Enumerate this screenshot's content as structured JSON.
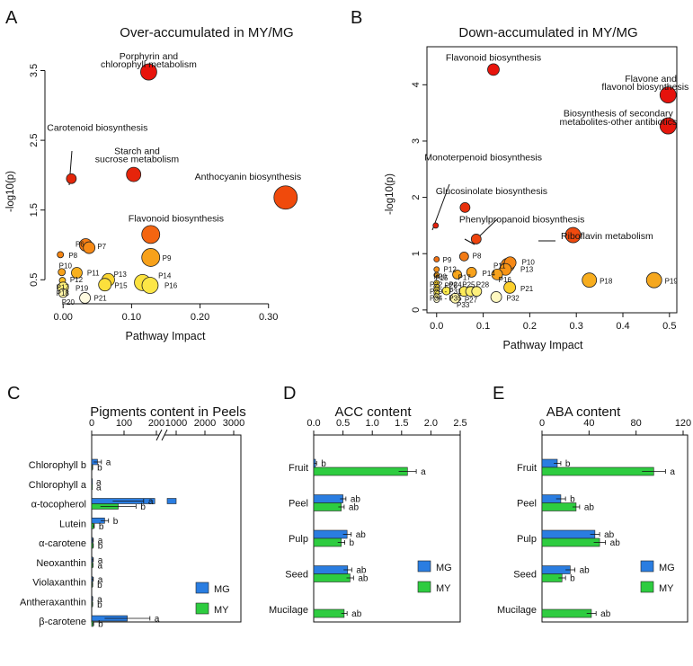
{
  "colors": {
    "MG": "#2a7de1",
    "MY": "#2ecc40",
    "frame": "#111111"
  },
  "panels": [
    {
      "letter": "A",
      "title": "Over-accumulated in MY/MG"
    },
    {
      "letter": "B",
      "title": "Down-accumulated in MY/MG"
    },
    {
      "letter": "C",
      "title": "Pigments content in Peels"
    },
    {
      "letter": "D",
      "title": "ACC content"
    },
    {
      "letter": "E",
      "title": "ABA content"
    }
  ],
  "chart_data": [
    {
      "id": "A",
      "type": "scatter",
      "title": "Over-accumulated in MY/MG",
      "xlabel": "Pathway Impact",
      "ylabel": "-log10(p)",
      "xlim": [
        -0.02,
        0.345
      ],
      "ylim": [
        0.22,
        3.7
      ],
      "xticks": [
        {
          "v": 0,
          "t": "0.00"
        },
        {
          "v": 0.1,
          "t": "0.10"
        },
        {
          "v": 0.2,
          "t": "0.20"
        },
        {
          "v": 0.3,
          "t": "0.30"
        }
      ],
      "yticks": [
        {
          "v": 0.5,
          "t": "0.5"
        },
        {
          "v": 1.5,
          "t": "1.5"
        },
        {
          "v": 2.5,
          "t": "2.5"
        },
        {
          "v": 3.5,
          "t": "3.5"
        }
      ],
      "points": [
        {
          "x": 0.125,
          "y": 3.48,
          "s": 9,
          "c": "#e8140c"
        },
        {
          "x": 0.012,
          "y": 1.95,
          "s": 5.5,
          "c": "#e4260a"
        },
        {
          "x": 0.103,
          "y": 2.01,
          "s": 8,
          "c": "#e6240b"
        },
        {
          "x": 0.325,
          "y": 1.68,
          "s": 13,
          "c": "#f04a0c"
        },
        {
          "x": 0.128,
          "y": 1.15,
          "s": 10,
          "c": "#f46510"
        },
        {
          "x": 0.033,
          "y": 1.0,
          "s": 7,
          "c": "#f67c14"
        },
        {
          "x": 0.038,
          "y": 0.96,
          "s": 6.5,
          "c": "#f78a16"
        },
        {
          "x": 0.128,
          "y": 0.82,
          "s": 10,
          "c": "#f7a11a"
        },
        {
          "x": -0.004,
          "y": 0.86,
          "s": 3.5,
          "c": "#f58512"
        },
        {
          "x": -0.002,
          "y": 0.61,
          "s": 4,
          "c": "#f6a11a"
        },
        {
          "x": 0.02,
          "y": 0.6,
          "s": 6,
          "c": "#f8b01e"
        },
        {
          "x": -0.001,
          "y": 0.49,
          "s": 3.5,
          "c": "#f9bf24"
        },
        {
          "x": 0.066,
          "y": 0.5,
          "s": 7,
          "c": "#fbd630"
        },
        {
          "x": 0.061,
          "y": 0.43,
          "s": 7,
          "c": "#fce03c"
        },
        {
          "x": 0.116,
          "y": 0.46,
          "s": 9,
          "c": "#fce23e"
        },
        {
          "x": 0.127,
          "y": 0.42,
          "s": 9,
          "c": "#fde646"
        },
        {
          "x": 0.0,
          "y": 0.39,
          "s": 6,
          "c": "#fdef7a"
        },
        {
          "x": 0.0,
          "y": 0.31,
          "s": 5,
          "c": "#fef5a8"
        },
        {
          "x": 0.032,
          "y": 0.24,
          "s": 6,
          "c": "#fffbe0"
        }
      ],
      "labels": [
        {
          "t": "Porphyrin and",
          "x": 0.125,
          "y": 3.7
        },
        {
          "t": "chlorophyll metabolism",
          "x": 0.125,
          "y": 3.58
        },
        {
          "t": "Carotenoid biosynthesis",
          "x": 0.05,
          "y": 2.67
        },
        {
          "t": "Starch and",
          "x": 0.108,
          "y": 2.34
        },
        {
          "t": "sucrose metabolism",
          "x": 0.108,
          "y": 2.22
        },
        {
          "t": "Anthocyanin biosynthesis",
          "x": 0.27,
          "y": 1.97
        },
        {
          "t": "Flavonoid biosynthesis",
          "x": 0.165,
          "y": 1.37
        },
        {
          "t": "P6",
          "x": 0.018,
          "y": 1.0
        },
        {
          "t": "P7",
          "x": 0.05,
          "y": 0.97
        },
        {
          "t": "P8",
          "x": 0.008,
          "y": 0.84
        },
        {
          "t": "P9",
          "x": 0.145,
          "y": 0.8
        },
        {
          "t": "P10",
          "x": -0.006,
          "y": 0.69
        },
        {
          "t": "P11",
          "x": 0.035,
          "y": 0.59
        },
        {
          "t": "P12",
          "x": 0.01,
          "y": 0.49
        },
        {
          "t": "P13",
          "x": 0.074,
          "y": 0.57
        },
        {
          "t": "P14",
          "x": 0.139,
          "y": 0.55
        },
        {
          "t": "P15",
          "x": 0.075,
          "y": 0.41
        },
        {
          "t": "P16",
          "x": 0.148,
          "y": 0.41
        },
        {
          "t": "P17",
          "x": -0.01,
          "y": 0.38
        },
        {
          "t": "P19",
          "x": 0.018,
          "y": 0.37
        },
        {
          "t": "P18",
          "x": -0.01,
          "y": 0.3
        },
        {
          "t": "P20",
          "x": -0.002,
          "y": 0.17
        },
        {
          "t": "P21",
          "x": 0.045,
          "y": 0.23
        }
      ]
    },
    {
      "id": "B",
      "type": "scatter",
      "title": "Down-accumulated in MY/MG",
      "xlabel": "Pathway Impact",
      "ylabel": "-log10(p)",
      "xlim": [
        -0.015,
        0.51
      ],
      "ylim": [
        -0.05,
        4.5
      ],
      "xticks": [
        {
          "v": 0,
          "t": "0.0"
        },
        {
          "v": 0.1,
          "t": "0.1"
        },
        {
          "v": 0.2,
          "t": "0.2"
        },
        {
          "v": 0.3,
          "t": "0.3"
        },
        {
          "v": 0.4,
          "t": "0.4"
        },
        {
          "v": 0.5,
          "t": "0.5"
        }
      ],
      "yticks": [
        {
          "v": 0,
          "t": "0"
        },
        {
          "v": 1,
          "t": "1"
        },
        {
          "v": 2,
          "t": "2"
        },
        {
          "v": 3,
          "t": "3"
        },
        {
          "v": 4,
          "t": "4"
        }
      ],
      "points": [
        {
          "x": 0.122,
          "y": 4.27,
          "s": 6.5,
          "c": "#e8140c"
        },
        {
          "x": 0.497,
          "y": 3.82,
          "s": 9,
          "c": "#e6120c"
        },
        {
          "x": 0.497,
          "y": 3.27,
          "s": 9,
          "c": "#e6160c"
        },
        {
          "x": -0.002,
          "y": 1.5,
          "s": 3,
          "c": "#e6200c"
        },
        {
          "x": 0.061,
          "y": 1.82,
          "s": 5.5,
          "c": "#e8300c"
        },
        {
          "x": 0.085,
          "y": 1.26,
          "s": 5.5,
          "c": "#ee440e"
        },
        {
          "x": 0.293,
          "y": 1.33,
          "s": 8.5,
          "c": "#f04a0e"
        },
        {
          "x": 0.0,
          "y": 0.9,
          "s": 3,
          "c": "#f17012"
        },
        {
          "x": 0.059,
          "y": 0.95,
          "s": 5,
          "c": "#f27a14"
        },
        {
          "x": 0.0,
          "y": 0.72,
          "s": 3,
          "c": "#f69018"
        },
        {
          "x": 0.153,
          "y": 0.8,
          "s": 7.5,
          "c": "#f68a16"
        },
        {
          "x": 0.158,
          "y": 0.84,
          "s": 6.5,
          "c": "#f68816"
        },
        {
          "x": 0.148,
          "y": 0.72,
          "s": 6.5,
          "c": "#f79416"
        },
        {
          "x": 0.0,
          "y": 0.62,
          "s": 3,
          "c": "#f8a41c"
        },
        {
          "x": 0.044,
          "y": 0.63,
          "s": 5,
          "c": "#f8a61c"
        },
        {
          "x": 0.075,
          "y": 0.67,
          "s": 5.5,
          "c": "#f8a21c"
        },
        {
          "x": 0.13,
          "y": 0.63,
          "s": 6,
          "c": "#f8a21c"
        },
        {
          "x": 0.328,
          "y": 0.53,
          "s": 8,
          "c": "#f7ad1e"
        },
        {
          "x": 0.467,
          "y": 0.53,
          "s": 8.5,
          "c": "#f5a71e"
        },
        {
          "x": 0.157,
          "y": 0.4,
          "s": 6.5,
          "c": "#fbcf2c"
        },
        {
          "x": 0.0,
          "y": 0.48,
          "s": 3,
          "c": "#fbd230"
        },
        {
          "x": 0.0,
          "y": 0.41,
          "s": 3,
          "c": "#fcd836"
        },
        {
          "x": 0.0,
          "y": 0.36,
          "s": 3,
          "c": "#fce242"
        },
        {
          "x": 0.0,
          "y": 0.3,
          "s": 3,
          "c": "#fde84e"
        },
        {
          "x": 0.0,
          "y": 0.24,
          "s": 3,
          "c": "#fef08a"
        },
        {
          "x": 0.0,
          "y": 0.18,
          "s": 3,
          "c": "#fffad0"
        },
        {
          "x": 0.021,
          "y": 0.34,
          "s": 4.5,
          "c": "#fcea4c"
        },
        {
          "x": 0.059,
          "y": 0.33,
          "s": 5.5,
          "c": "#fdea58"
        },
        {
          "x": 0.073,
          "y": 0.33,
          "s": 5.5,
          "c": "#fdee6a"
        },
        {
          "x": 0.086,
          "y": 0.33,
          "s": 5.5,
          "c": "#fdf07c"
        },
        {
          "x": 0.04,
          "y": 0.21,
          "s": 5.5,
          "c": "#fef5a8"
        },
        {
          "x": 0.128,
          "y": 0.23,
          "s": 6,
          "c": "#fff8c0"
        }
      ],
      "labels": [
        {
          "t": "Flavonoid biosynthesis",
          "x": 0.122,
          "y": 4.47
        },
        {
          "t": "Flavone and",
          "x": 0.46,
          "y": 4.1
        },
        {
          "t": "flavonol biosynthesis",
          "x": 0.448,
          "y": 3.95
        },
        {
          "t": "Biosynthesis of secondary",
          "x": 0.39,
          "y": 3.48
        },
        {
          "t": "metabolites-other antibiotics",
          "x": 0.39,
          "y": 3.33
        },
        {
          "t": "Monoterpenoid biosynthesis",
          "x": 0.1,
          "y": 2.7
        },
        {
          "t": "Glucosinolate biosynthesis",
          "x": 0.118,
          "y": 2.1
        },
        {
          "t": "Phenylpropanoid biosynthesis",
          "x": 0.183,
          "y": 1.6
        },
        {
          "t": "Riboflavin metabolism",
          "x": 0.366,
          "y": 1.3
        },
        {
          "t": "P9",
          "x": 0.013,
          "y": 0.88
        },
        {
          "t": "P8",
          "x": 0.077,
          "y": 0.95
        },
        {
          "t": "P12",
          "x": 0.015,
          "y": 0.71
        },
        {
          "t": "P10",
          "x": 0.183,
          "y": 0.84
        },
        {
          "t": "P11",
          "x": 0.122,
          "y": 0.77
        },
        {
          "t": "P13",
          "x": 0.18,
          "y": 0.71
        },
        {
          "t": "P14",
          "x": 0.098,
          "y": 0.64
        },
        {
          "t": "P15",
          "x": -0.003,
          "y": 0.56
        },
        {
          "t": "P17",
          "x": 0.046,
          "y": 0.57
        },
        {
          "t": "P16",
          "x": 0.133,
          "y": 0.53
        },
        {
          "t": "P18",
          "x": 0.35,
          "y": 0.5
        },
        {
          "t": "P19",
          "x": 0.49,
          "y": 0.5
        },
        {
          "t": "P20",
          "x": -0.006,
          "y": 0.58
        },
        {
          "t": "P21",
          "x": 0.18,
          "y": 0.37
        },
        {
          "t": "P22 - P24",
          "x": -0.015,
          "y": 0.44
        },
        {
          "t": "P25",
          "x": 0.055,
          "y": 0.44
        },
        {
          "t": "P28",
          "x": 0.085,
          "y": 0.44
        },
        {
          "t": "P26",
          "x": 0.017,
          "y": 0.42
        },
        {
          "t": "P29 - P31",
          "x": -0.015,
          "y": 0.32
        },
        {
          "t": "P34 - P35",
          "x": -0.015,
          "y": 0.2
        },
        {
          "t": "P27",
          "x": 0.06,
          "y": 0.17
        },
        {
          "t": "P32",
          "x": 0.15,
          "y": 0.2
        },
        {
          "t": "P33",
          "x": 0.043,
          "y": 0.08
        }
      ]
    },
    {
      "id": "C",
      "type": "bar",
      "orientation": "horizontal",
      "title": "Pigments content in Peels",
      "categories": [
        "Chlorophyll b",
        "Chlorophyll a",
        "α-tocopherol",
        "Lutein",
        "α-carotene",
        "Neoxanthin",
        "Violaxanthin",
        "Antheraxanthin",
        "β-carotene"
      ],
      "xaxis_left": {
        "range": [
          0,
          200
        ],
        "ticks": [
          "0",
          "100",
          "200"
        ]
      },
      "xaxis_right": {
        "range": [
          1000,
          3400
        ],
        "ticks": [
          "1000",
          "2000",
          "3000"
        ]
      },
      "series": [
        {
          "name": "MG",
          "values": [
            18,
            0,
            195,
            40,
            3,
            3,
            3,
            2,
            110
          ],
          "errors": [
            12,
            0,
            130,
            12,
            2,
            2,
            2,
            1,
            70
          ],
          "letters": [
            "a",
            "a",
            "a",
            "b",
            "a",
            "a",
            "a",
            "a",
            "a"
          ]
        },
        {
          "name": "MY",
          "values": [
            2,
            0,
            82,
            6,
            4,
            3,
            2,
            2,
            4
          ],
          "errors": [
            1,
            0,
            55,
            2,
            1,
            1,
            1,
            1,
            2
          ],
          "letters": [
            "b",
            "a",
            "b",
            "b",
            "b",
            "a",
            "b",
            "b",
            "b"
          ]
        }
      ],
      "legend": [
        "MG",
        "MY"
      ]
    },
    {
      "id": "D",
      "type": "bar",
      "orientation": "horizontal",
      "title": "ACC content",
      "categories": [
        "Fruit",
        "Peel",
        "Pulp",
        "Seed",
        "Mucilage"
      ],
      "xlim": [
        0,
        2.5
      ],
      "xticks": [
        "0.0",
        "0.5",
        "1.0",
        "1.5",
        "2.0",
        "2.5"
      ],
      "series": [
        {
          "name": "MG",
          "values": [
            0.03,
            0.5,
            0.57,
            0.58,
            null
          ],
          "errors": [
            0.02,
            0.05,
            0.07,
            0.07,
            null
          ],
          "letters": [
            "b",
            "ab",
            "ab",
            "ab",
            ""
          ]
        },
        {
          "name": "MY",
          "values": [
            1.6,
            0.47,
            0.47,
            0.62,
            0.52
          ],
          "errors": [
            0.15,
            0.05,
            0.06,
            0.06,
            0.05
          ],
          "letters": [
            "a",
            "ab",
            "b",
            "ab",
            "ab"
          ]
        }
      ],
      "legend": [
        "MG",
        "MY"
      ]
    },
    {
      "id": "E",
      "type": "bar",
      "orientation": "horizontal",
      "title": "ABA content",
      "categories": [
        "Fruit",
        "Peel",
        "Pulp",
        "Seed",
        "Mucilage"
      ],
      "xlim": [
        0,
        120
      ],
      "xticks": [
        "0",
        "40",
        "80",
        "120"
      ],
      "series": [
        {
          "name": "MG",
          "values": [
            13,
            16,
            45,
            24,
            null
          ],
          "errors": [
            3,
            4,
            4,
            4,
            null
          ],
          "letters": [
            "b",
            "b",
            "ab",
            "ab",
            ""
          ]
        },
        {
          "name": "MY",
          "values": [
            95,
            29,
            49,
            17,
            42
          ],
          "errors": [
            10,
            3,
            5,
            3,
            4
          ],
          "letters": [
            "a",
            "ab",
            "ab",
            "b",
            "ab"
          ]
        }
      ],
      "legend": [
        "MG",
        "MY"
      ]
    }
  ]
}
